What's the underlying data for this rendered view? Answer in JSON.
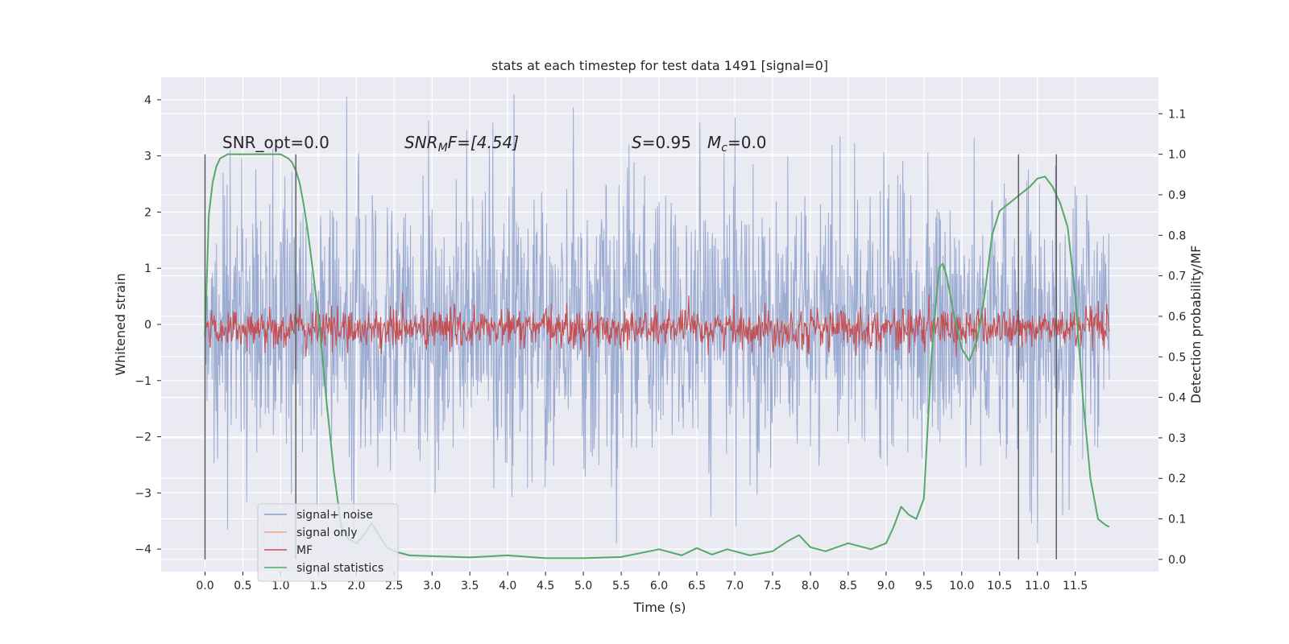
{
  "chart_data": {
    "type": "line",
    "title": "stats at each timestep for test data 1491 [signal=0]",
    "xlabel": "Time (s)",
    "ylabel": "Whitened strain",
    "y2label": "Detection probability/MF",
    "xlim": [
      -0.58,
      12.6
    ],
    "ylim": [
      -4.4,
      4.4
    ],
    "y2lim": [
      -0.03,
      1.19
    ],
    "x_ticks": [
      "0.0",
      "0.5",
      "1.0",
      "1.5",
      "2.0",
      "2.5",
      "3.0",
      "3.5",
      "4.0",
      "4.5",
      "5.0",
      "5.5",
      "6.0",
      "6.5",
      "7.0",
      "7.5",
      "8.0",
      "8.5",
      "9.0",
      "9.5",
      "10.0",
      "10.5",
      "11.0",
      "11.5"
    ],
    "y_ticks": [
      "4",
      "3",
      "2",
      "1",
      "0",
      "−1",
      "−2",
      "−3",
      "−4"
    ],
    "y2_ticks": [
      "1.1",
      "1.0",
      "0.9",
      "0.8",
      "0.7",
      "0.6",
      "0.5",
      "0.4",
      "0.3",
      "0.2",
      "0.1",
      "0.0"
    ],
    "grid": true,
    "legend_position": "lower-left",
    "annotations": {
      "snr_opt": "SNR_opt=0.0",
      "snr_mf_sym": "SNR",
      "snr_mf_sub": "M",
      "snr_mf_rest": "F=[4.54]",
      "s_sym": "S",
      "s_val": "=0.95",
      "mc_sym": "M",
      "mc_sub": "c",
      "mc_val": "=0.0"
    },
    "vertical_markers_x": [
      0.0,
      1.2,
      10.75,
      11.25
    ],
    "series": [
      {
        "name": "signal+ noise",
        "color": "#8da0cb",
        "axis": "left",
        "x_range": [
          0.0,
          11.95
        ],
        "noise_amplitude": 1.2,
        "extreme_range": [
          -3.9,
          4.1
        ]
      },
      {
        "name": "signal only",
        "color": "#f0a58a",
        "axis": "left",
        "x": [
          0.0,
          11.95
        ],
        "y": [
          0.0,
          0.0
        ]
      },
      {
        "name": "MF",
        "color": "#c44e52",
        "axis": "right",
        "x_range": [
          0.0,
          11.95
        ],
        "baseline": 0.57,
        "range": [
          0.5,
          0.64
        ]
      },
      {
        "name": "signal statistics",
        "color": "#55a868",
        "axis": "right",
        "x": [
          0.0,
          0.05,
          0.1,
          0.15,
          0.2,
          0.3,
          0.5,
          1.0,
          1.1,
          1.15,
          1.2,
          1.25,
          1.3,
          1.35,
          1.4,
          1.5,
          1.6,
          1.7,
          1.8,
          1.9,
          2.0,
          2.1,
          2.2,
          2.3,
          2.4,
          2.5,
          2.7,
          3.0,
          3.5,
          4.0,
          4.5,
          5.0,
          5.5,
          6.0,
          6.3,
          6.5,
          6.7,
          6.9,
          7.2,
          7.5,
          7.7,
          7.85,
          8.0,
          8.2,
          8.5,
          8.8,
          9.0,
          9.1,
          9.2,
          9.3,
          9.4,
          9.5,
          9.6,
          9.7,
          9.75,
          9.8,
          9.9,
          10.0,
          10.1,
          10.2,
          10.3,
          10.4,
          10.5,
          10.7,
          10.9,
          11.0,
          11.1,
          11.2,
          11.3,
          11.4,
          11.5,
          11.6,
          11.7,
          11.8,
          11.9,
          11.95
        ],
        "y": [
          0.55,
          0.85,
          0.93,
          0.97,
          0.99,
          1.0,
          1.0,
          1.0,
          0.99,
          0.98,
          0.96,
          0.93,
          0.88,
          0.82,
          0.75,
          0.6,
          0.4,
          0.22,
          0.08,
          0.05,
          0.04,
          0.06,
          0.09,
          0.06,
          0.03,
          0.02,
          0.01,
          0.008,
          0.005,
          0.01,
          0.003,
          0.003,
          0.006,
          0.025,
          0.01,
          0.028,
          0.012,
          0.025,
          0.01,
          0.02,
          0.045,
          0.06,
          0.03,
          0.02,
          0.04,
          0.025,
          0.04,
          0.08,
          0.13,
          0.11,
          0.1,
          0.15,
          0.5,
          0.72,
          0.73,
          0.7,
          0.6,
          0.52,
          0.49,
          0.54,
          0.65,
          0.8,
          0.86,
          0.89,
          0.92,
          0.94,
          0.945,
          0.92,
          0.88,
          0.82,
          0.65,
          0.4,
          0.2,
          0.1,
          0.085,
          0.08
        ]
      }
    ]
  }
}
